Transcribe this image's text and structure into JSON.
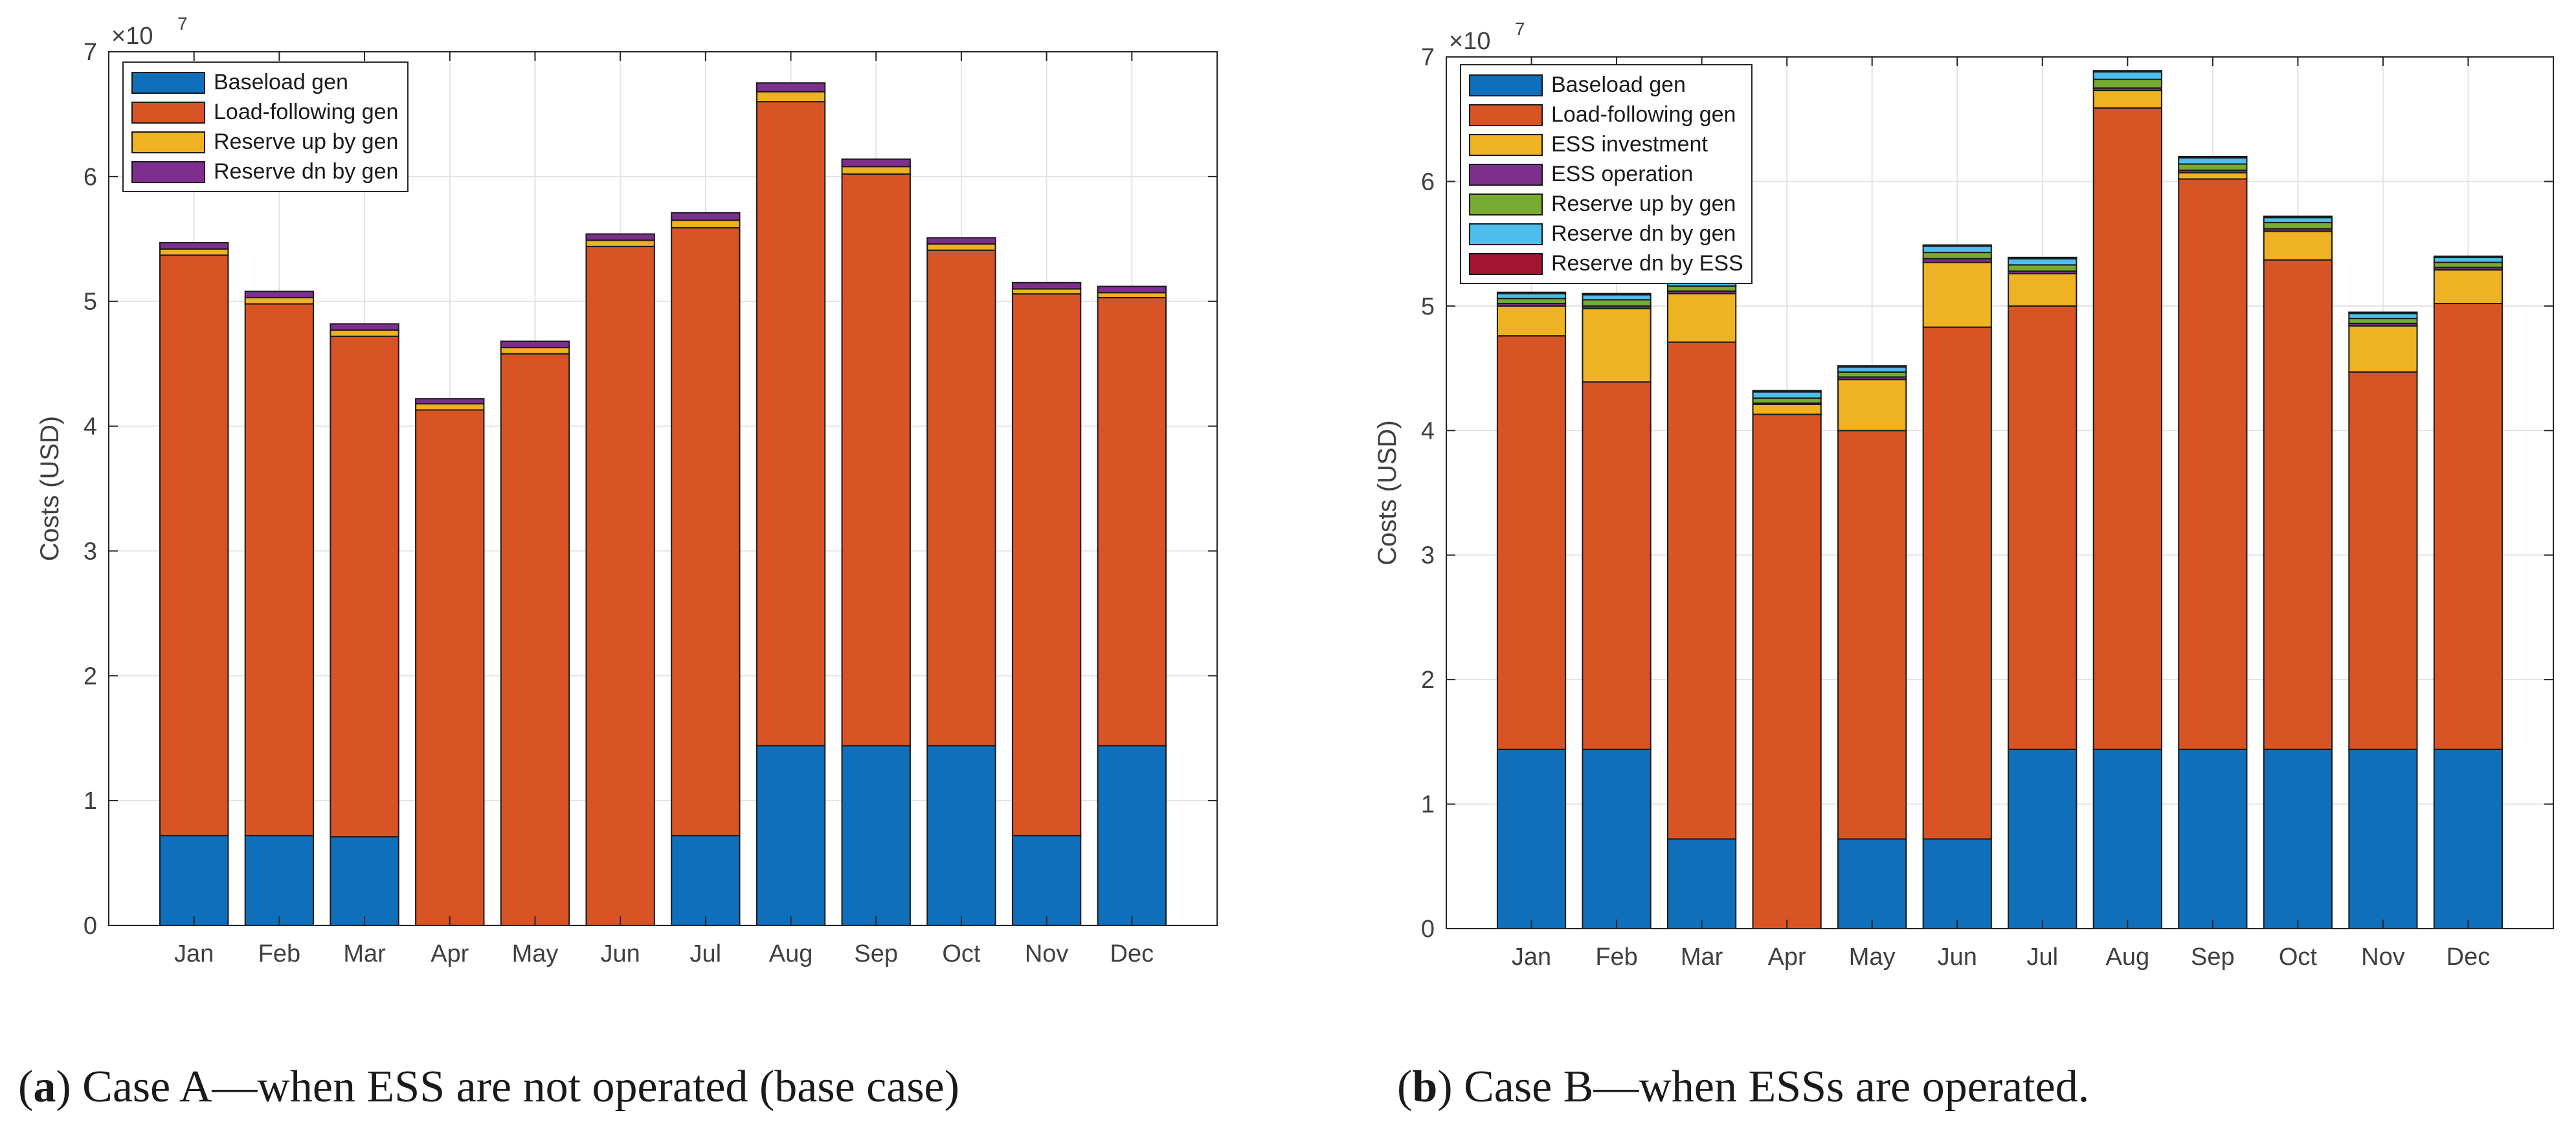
{
  "months": [
    "Jan",
    "Feb",
    "Mar",
    "Apr",
    "May",
    "Jun",
    "Jul",
    "Aug",
    "Sep",
    "Oct",
    "Nov",
    "Dec"
  ],
  "colors": {
    "blue": "#0F6FBA",
    "orange": "#D95424",
    "yellow": "#EEB222",
    "purple": "#7E2F8E",
    "green": "#77AC30",
    "cyan": "#4DBEEE",
    "red": "#A2142F",
    "grid": "#E3E3E3",
    "axis": "#262626",
    "text": "#404040"
  },
  "captions": {
    "a": {
      "letter": "a",
      "text": "Case A—when ESS are not operated (base case)"
    },
    "b": {
      "letter": "b",
      "text": "Case B—when ESSs are operated."
    }
  },
  "chart_data": [
    {
      "type": "bar",
      "stacked": true,
      "title": "",
      "xlabel": "",
      "ylabel": "Costs (USD)",
      "y_exponent_label": "×10",
      "y_exponent": "7",
      "ylim": [
        0,
        7
      ],
      "yticks": [
        0,
        1,
        2,
        3,
        4,
        5,
        6,
        7
      ],
      "grid": true,
      "legend_position": "top-left",
      "categories": [
        "Jan",
        "Feb",
        "Mar",
        "Apr",
        "May",
        "Jun",
        "Jul",
        "Aug",
        "Sep",
        "Oct",
        "Nov",
        "Dec"
      ],
      "series": [
        {
          "name": "Baseload gen",
          "color": "#0F6FBA",
          "values": [
            0.72,
            0.72,
            0.71,
            0,
            0,
            0,
            0.72,
            1.44,
            1.44,
            1.44,
            0.72,
            1.44
          ]
        },
        {
          "name": "Load-following gen",
          "color": "#D95424",
          "values": [
            4.65,
            4.26,
            4.01,
            4.13,
            4.58,
            5.44,
            4.87,
            5.16,
            4.58,
            3.97,
            4.34,
            3.59
          ]
        },
        {
          "name": "Reserve up by gen",
          "color": "#EEB222",
          "values": [
            0.05,
            0.05,
            0.05,
            0.05,
            0.05,
            0.05,
            0.06,
            0.08,
            0.06,
            0.05,
            0.04,
            0.04
          ]
        },
        {
          "name": "Reserve dn by gen",
          "color": "#7E2F8E",
          "values": [
            0.05,
            0.05,
            0.05,
            0.04,
            0.05,
            0.05,
            0.06,
            0.07,
            0.06,
            0.05,
            0.05,
            0.05
          ]
        }
      ]
    },
    {
      "type": "bar",
      "stacked": true,
      "title": "",
      "xlabel": "",
      "ylabel": "Costs (USD)",
      "y_exponent_label": "×10",
      "y_exponent": "7",
      "ylim": [
        0,
        7
      ],
      "yticks": [
        0,
        1,
        2,
        3,
        4,
        5,
        6,
        7
      ],
      "grid": true,
      "legend_position": "top-left",
      "categories": [
        "Jan",
        "Feb",
        "Mar",
        "Apr",
        "May",
        "Jun",
        "Jul",
        "Aug",
        "Sep",
        "Oct",
        "Nov",
        "Dec"
      ],
      "series": [
        {
          "name": "Baseload gen",
          "color": "#0F6FBA",
          "values": [
            1.44,
            1.44,
            0.72,
            0,
            0.72,
            0.72,
            1.44,
            1.44,
            1.44,
            1.44,
            1.44,
            1.44
          ]
        },
        {
          "name": "Load-following gen",
          "color": "#D95424",
          "values": [
            3.32,
            2.95,
            3.99,
            4.13,
            3.28,
            4.11,
            3.56,
            5.15,
            4.58,
            3.93,
            3.03,
            3.58
          ]
        },
        {
          "name": "ESS investment",
          "color": "#EEB222",
          "values": [
            0.24,
            0.59,
            0.39,
            0.08,
            0.41,
            0.52,
            0.26,
            0.14,
            0.05,
            0.23,
            0.37,
            0.27
          ]
        },
        {
          "name": "ESS operation",
          "color": "#7E2F8E",
          "values": [
            0.02,
            0.02,
            0.02,
            0.01,
            0.02,
            0.03,
            0.02,
            0.02,
            0.02,
            0.02,
            0.02,
            0.02
          ]
        },
        {
          "name": "Reserve up by gen",
          "color": "#77AC30",
          "values": [
            0.04,
            0.05,
            0.04,
            0.04,
            0.04,
            0.05,
            0.05,
            0.07,
            0.05,
            0.05,
            0.04,
            0.04
          ]
        },
        {
          "name": "Reserve dn by gen",
          "color": "#4DBEEE",
          "values": [
            0.04,
            0.04,
            0.04,
            0.05,
            0.04,
            0.05,
            0.05,
            0.06,
            0.05,
            0.04,
            0.04,
            0.04
          ]
        },
        {
          "name": "Reserve dn by ESS",
          "color": "#A2142F",
          "values": [
            0.01,
            0.01,
            0.01,
            0.01,
            0.01,
            0.01,
            0.01,
            0.01,
            0.01,
            0.01,
            0.01,
            0.01
          ]
        }
      ]
    }
  ]
}
